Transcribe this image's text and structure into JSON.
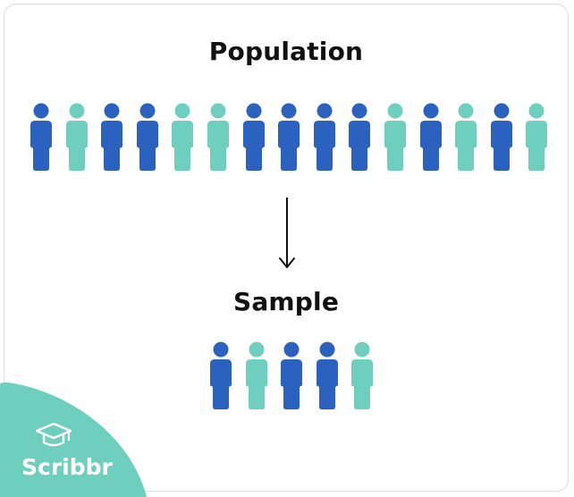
{
  "diagram": {
    "population_title": "Population",
    "sample_title": "Sample",
    "colors": {
      "blue": "#2c62bf",
      "teal": "#6fcfbf",
      "brand": "#6fcfbf"
    },
    "population": [
      "blue",
      "teal",
      "blue",
      "blue",
      "teal",
      "teal",
      "blue",
      "blue",
      "blue",
      "blue",
      "teal",
      "blue",
      "teal",
      "blue",
      "teal"
    ],
    "sample": [
      "blue",
      "teal",
      "blue",
      "blue",
      "teal"
    ],
    "arrow_icon": "arrow-down-icon"
  },
  "brand": {
    "name": "Scribbr",
    "icon": "graduation-cap-icon"
  }
}
